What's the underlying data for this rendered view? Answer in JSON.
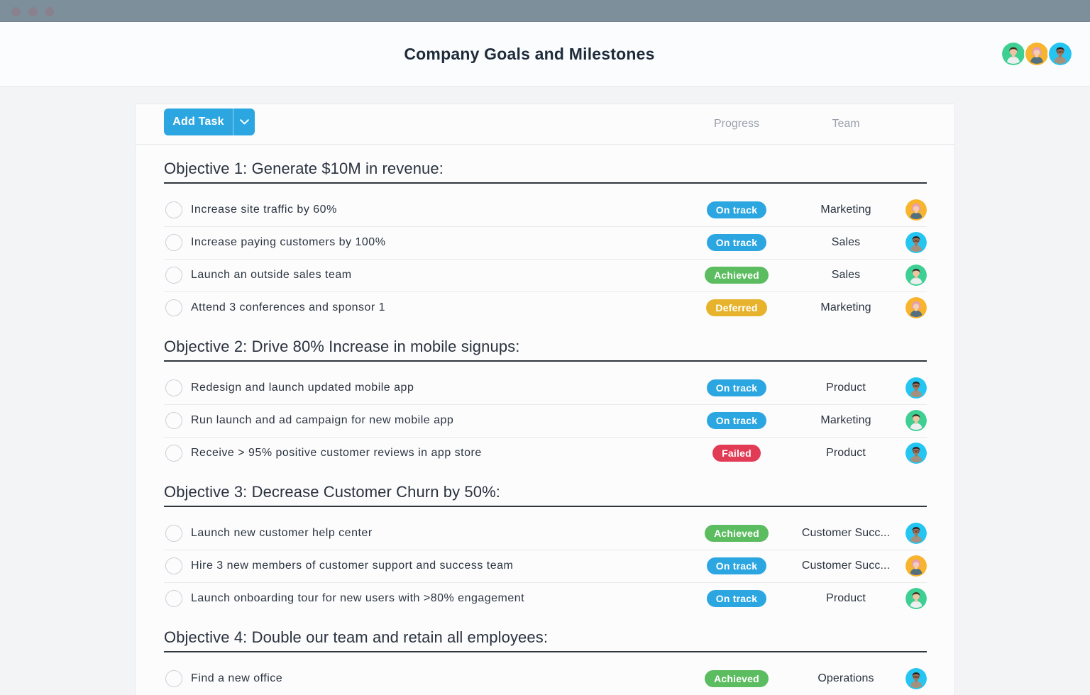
{
  "window": {
    "traffic_light_dots": 3
  },
  "header": {
    "title": "Company Goals and Milestones",
    "avatars": [
      {
        "name": "avatar-green",
        "variant": "green"
      },
      {
        "name": "avatar-yellow",
        "variant": "yellow"
      },
      {
        "name": "avatar-cyan",
        "variant": "cyan"
      }
    ]
  },
  "toolbar": {
    "add_task_label": "Add Task",
    "columns": {
      "progress": "Progress",
      "team": "Team"
    }
  },
  "colors": {
    "accent_blue": "#2ca6e1",
    "status": {
      "on-track": "#2ca6e1",
      "achieved": "#5cbd60",
      "deferred": "#e8b32c",
      "failed": "#e23b55"
    },
    "avatar_bg": {
      "green": "#3ecf92",
      "yellow": "#f7b42c",
      "cyan": "#25c5f2"
    }
  },
  "sections": [
    {
      "title": "Objective 1: Generate $10M in revenue:",
      "tasks": [
        {
          "name": "Increase site traffic by 60%",
          "status": "On track",
          "status_key": "on-track",
          "team": "Marketing",
          "avatar": "yellow"
        },
        {
          "name": "Increase paying customers by 100%",
          "status": "On track",
          "status_key": "on-track",
          "team": "Sales",
          "avatar": "cyan"
        },
        {
          "name": "Launch an outside sales team",
          "status": "Achieved",
          "status_key": "achieved",
          "team": "Sales",
          "avatar": "green"
        },
        {
          "name": "Attend 3 conferences and sponsor 1",
          "status": "Deferred",
          "status_key": "deferred",
          "team": "Marketing",
          "avatar": "yellow"
        }
      ]
    },
    {
      "title": "Objective 2: Drive 80% Increase in mobile signups:",
      "tasks": [
        {
          "name": "Redesign and launch updated mobile app",
          "status": "On track",
          "status_key": "on-track",
          "team": "Product",
          "avatar": "cyan"
        },
        {
          "name": "Run launch and ad campaign for new mobile app",
          "status": "On track",
          "status_key": "on-track",
          "team": "Marketing",
          "avatar": "green"
        },
        {
          "name": "Receive > 95% positive customer reviews in app store",
          "status": "Failed",
          "status_key": "failed",
          "team": "Product",
          "avatar": "cyan"
        }
      ]
    },
    {
      "title": "Objective 3: Decrease Customer Churn by 50%:",
      "tasks": [
        {
          "name": "Launch new customer help center",
          "status": "Achieved",
          "status_key": "achieved",
          "team": "Customer Succ...",
          "avatar": "cyan"
        },
        {
          "name": "Hire 3 new members of customer support and success team",
          "status": "On track",
          "status_key": "on-track",
          "team": "Customer Succ...",
          "avatar": "yellow"
        },
        {
          "name": "Launch onboarding tour for new users with >80% engagement",
          "status": "On track",
          "status_key": "on-track",
          "team": "Product",
          "avatar": "green"
        }
      ]
    },
    {
      "title": "Objective 4: Double our team and retain all employees:",
      "tasks": [
        {
          "name": "Find a new office",
          "status": "Achieved",
          "status_key": "achieved",
          "team": "Operations",
          "avatar": "cyan"
        }
      ]
    }
  ]
}
